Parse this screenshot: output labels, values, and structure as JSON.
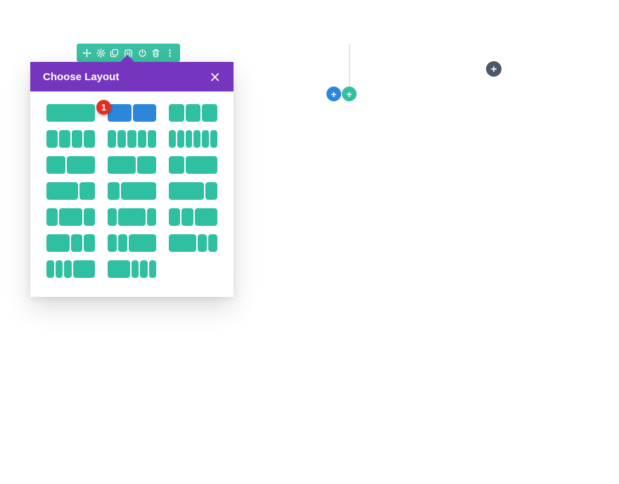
{
  "colors": {
    "toolbar_teal": "#3cbfa2",
    "block_teal": "#2fc0a1",
    "selected_blue": "#2c87db",
    "header_purple": "#7635be",
    "badge_red": "#e02f24",
    "add_blue": "#2c87db",
    "add_green": "#35bfa1",
    "add_dark": "#4c5865",
    "divider_gray": "#e5e5e5",
    "page_bg": "#ffffff"
  },
  "row_toolbar": {
    "icons": [
      "move",
      "settings",
      "duplicate",
      "columns",
      "save-to-library",
      "delete",
      "more-options"
    ]
  },
  "modal": {
    "title": "Choose Layout",
    "options": [
      {
        "structure": "1",
        "columns": [
          1
        ]
      },
      {
        "structure": "1/2 1/2",
        "columns": [
          1,
          1
        ],
        "selected": true,
        "badge": "1"
      },
      {
        "structure": "1/3 1/3 1/3",
        "columns": [
          1,
          1,
          1
        ]
      },
      {
        "structure": "1/4 1/4 1/4 1/4",
        "columns": [
          1,
          1,
          1,
          1
        ]
      },
      {
        "structure": "1/5 1/5 1/5 1/5 1/5",
        "columns": [
          1,
          1,
          1,
          1,
          1
        ]
      },
      {
        "structure": "1/6 1/6 1/6 1/6 1/6 1/6",
        "columns": [
          1,
          1,
          1,
          1,
          1,
          1
        ]
      },
      {
        "structure": "2/5 3/5",
        "columns": [
          2,
          3
        ]
      },
      {
        "structure": "3/5 2/5",
        "columns": [
          3,
          2
        ]
      },
      {
        "structure": "1/3 2/3",
        "columns": [
          1,
          2
        ]
      },
      {
        "structure": "2/3 1/3",
        "columns": [
          2,
          1
        ]
      },
      {
        "structure": "1/4 3/4",
        "columns": [
          1,
          3
        ]
      },
      {
        "structure": "3/4 1/4",
        "columns": [
          3,
          1
        ]
      },
      {
        "structure": "1/4 1/2 1/4",
        "columns": [
          1,
          2,
          1
        ]
      },
      {
        "structure": "1/5 3/5 1/5",
        "columns": [
          1,
          3,
          1
        ]
      },
      {
        "structure": "1/4 1/4 1/2",
        "columns": [
          1,
          1,
          2
        ]
      },
      {
        "structure": "1/2 1/4 1/4",
        "columns": [
          2,
          1,
          1
        ]
      },
      {
        "structure": "1/5 1/5 3/5",
        "columns": [
          1,
          1,
          3
        ]
      },
      {
        "structure": "3/5 1/5 1/5",
        "columns": [
          3,
          1,
          1
        ]
      },
      {
        "structure": "1/6 1/6 1/6 1/2",
        "columns": [
          1,
          1,
          1,
          3
        ]
      },
      {
        "structure": "1/2 1/6 1/6 1/6",
        "columns": [
          3,
          1,
          1,
          1
        ]
      }
    ]
  },
  "buttons": {
    "close": "×",
    "add_row_blue": "+",
    "add_row_green": "+",
    "add_section": "+"
  }
}
